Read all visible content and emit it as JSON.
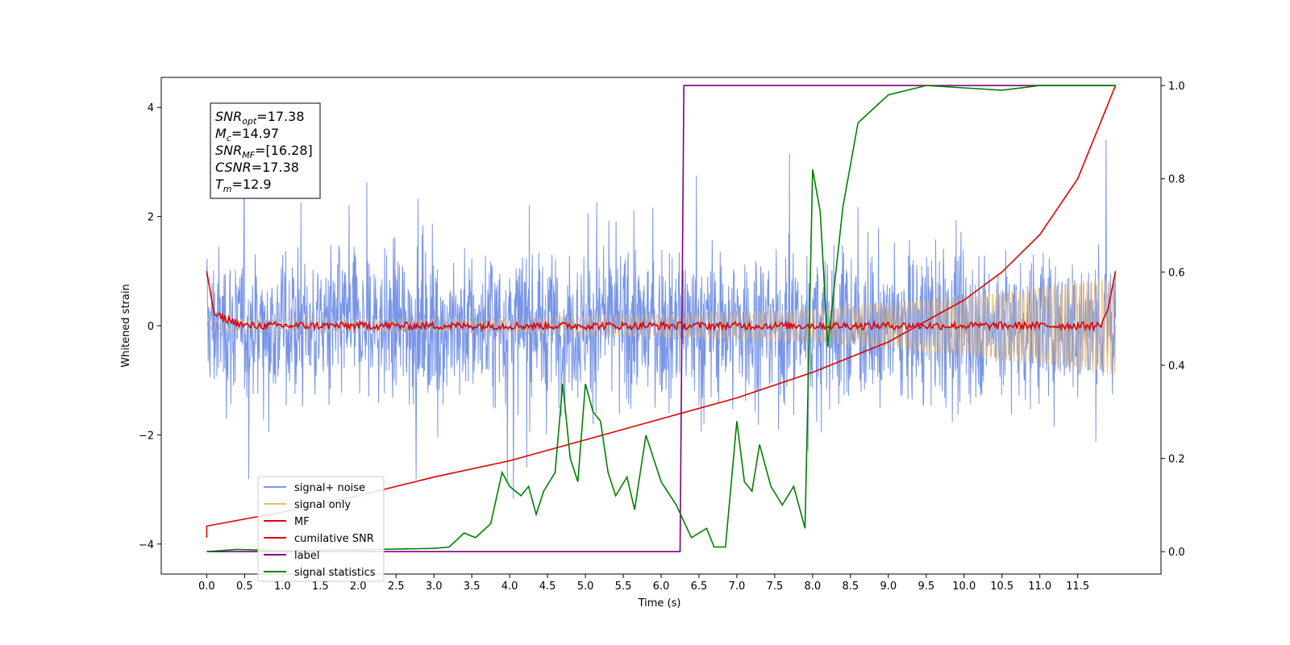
{
  "chart_data": {
    "type": "line",
    "xlabel": "Time (s)",
    "ylabel": "Whitened strain",
    "xlim": [
      -0.6,
      12.6
    ],
    "ylim": [
      -4.55,
      4.55
    ],
    "y2lim": [
      -0.048,
      1.0175
    ],
    "x_ticks": [
      "0.0",
      "0.5",
      "1.0",
      "1.5",
      "2.0",
      "2.5",
      "3.0",
      "3.5",
      "4.0",
      "4.5",
      "5.0",
      "5.5",
      "6.0",
      "6.5",
      "7.0",
      "7.5",
      "8.0",
      "8.5",
      "9.0",
      "9.5",
      "10.0",
      "10.5",
      "11.0",
      "11.5"
    ],
    "y_ticks": [
      "−4",
      "−2",
      "0",
      "2",
      "4"
    ],
    "y2_ticks": [
      "0.0",
      "0.2",
      "0.4",
      "0.6",
      "0.8",
      "1.0"
    ],
    "info_box": [
      {
        "base": "SNR",
        "sub": "opt",
        "value": "=17.38"
      },
      {
        "base": "M",
        "sub": "c",
        "value": "=14.97"
      },
      {
        "base": "SNR",
        "sub": "MF",
        "value": "=[16.28]"
      },
      {
        "base": "CSNR",
        "sub": "",
        "value": "=17.38"
      },
      {
        "base": "T",
        "sub": "m",
        "value": "=12.9"
      }
    ],
    "legend_position": "lower-left",
    "series": [
      {
        "name": "signal+ noise",
        "color": "#7895e8",
        "axis": "left",
        "note_values": "dense noise band spanning approx -2.5 to 2.5 with spikes to +/-4, 0 to 12 s"
      },
      {
        "name": "signal only",
        "color": "#e8ba74",
        "axis": "left",
        "envelope": [
          [
            0.0,
            0.12
          ],
          [
            4.0,
            0.13
          ],
          [
            8.0,
            0.3
          ],
          [
            10.0,
            0.55
          ],
          [
            12.0,
            0.9
          ]
        ]
      },
      {
        "name": "MF",
        "color": "#e00000",
        "axis": "left",
        "values": [
          [
            0.0,
            1.0
          ],
          [
            0.1,
            0.2
          ],
          [
            0.5,
            0.0
          ],
          [
            3.0,
            0.0
          ],
          [
            6.0,
            0.0
          ],
          [
            9.0,
            0.0
          ],
          [
            11.8,
            0.0
          ],
          [
            11.9,
            0.3
          ],
          [
            12.0,
            1.0
          ]
        ]
      },
      {
        "name": "cumilative SNR",
        "color": "#e00000",
        "axis": "right",
        "values": [
          [
            0.0,
            0.03
          ],
          [
            0.0,
            0.055
          ],
          [
            1.0,
            0.085
          ],
          [
            2.0,
            0.12
          ],
          [
            3.0,
            0.16
          ],
          [
            4.0,
            0.195
          ],
          [
            5.0,
            0.24
          ],
          [
            6.0,
            0.285
          ],
          [
            7.0,
            0.33
          ],
          [
            8.0,
            0.385
          ],
          [
            9.0,
            0.45
          ],
          [
            10.0,
            0.54
          ],
          [
            10.5,
            0.6
          ],
          [
            11.0,
            0.68
          ],
          [
            11.5,
            0.8
          ],
          [
            12.0,
            1.0
          ]
        ]
      },
      {
        "name": "label",
        "color": "#800080",
        "axis": "right",
        "values": [
          [
            0.0,
            0.0
          ],
          [
            6.25,
            0.0
          ],
          [
            6.3,
            1.0
          ],
          [
            12.0,
            1.0
          ]
        ]
      },
      {
        "name": "signal statistics",
        "color": "#008000",
        "axis": "right",
        "values": [
          [
            0.0,
            0.0
          ],
          [
            0.4,
            0.005
          ],
          [
            1.0,
            0.002
          ],
          [
            2.0,
            0.004
          ],
          [
            3.0,
            0.007
          ],
          [
            3.2,
            0.01
          ],
          [
            3.4,
            0.04
          ],
          [
            3.55,
            0.03
          ],
          [
            3.75,
            0.06
          ],
          [
            3.9,
            0.17
          ],
          [
            4.0,
            0.14
          ],
          [
            4.15,
            0.12
          ],
          [
            4.25,
            0.14
          ],
          [
            4.35,
            0.08
          ],
          [
            4.45,
            0.13
          ],
          [
            4.6,
            0.17
          ],
          [
            4.7,
            0.36
          ],
          [
            4.8,
            0.2
          ],
          [
            4.9,
            0.15
          ],
          [
            5.0,
            0.36
          ],
          [
            5.1,
            0.3
          ],
          [
            5.2,
            0.28
          ],
          [
            5.3,
            0.17
          ],
          [
            5.4,
            0.12
          ],
          [
            5.55,
            0.16
          ],
          [
            5.65,
            0.09
          ],
          [
            5.8,
            0.25
          ],
          [
            5.9,
            0.2
          ],
          [
            6.0,
            0.15
          ],
          [
            6.2,
            0.1
          ],
          [
            6.4,
            0.03
          ],
          [
            6.6,
            0.05
          ],
          [
            6.7,
            0.01
          ],
          [
            6.85,
            0.01
          ],
          [
            7.0,
            0.28
          ],
          [
            7.1,
            0.15
          ],
          [
            7.2,
            0.13
          ],
          [
            7.3,
            0.23
          ],
          [
            7.45,
            0.14
          ],
          [
            7.6,
            0.1
          ],
          [
            7.75,
            0.14
          ],
          [
            7.9,
            0.05
          ],
          [
            8.0,
            0.82
          ],
          [
            8.1,
            0.73
          ],
          [
            8.2,
            0.44
          ],
          [
            8.4,
            0.74
          ],
          [
            8.6,
            0.92
          ],
          [
            8.8,
            0.95
          ],
          [
            9.0,
            0.98
          ],
          [
            9.5,
            1.0
          ],
          [
            10.0,
            0.995
          ],
          [
            10.5,
            0.99
          ],
          [
            11.0,
            1.0
          ],
          [
            12.0,
            1.0
          ]
        ]
      }
    ]
  }
}
